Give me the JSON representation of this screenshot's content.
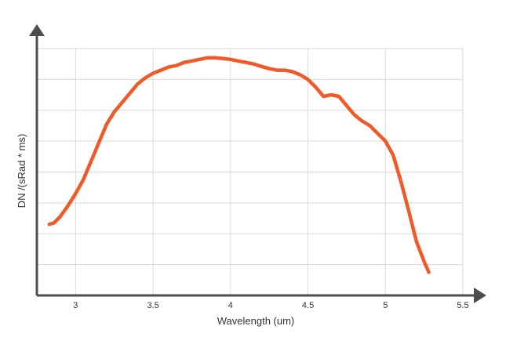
{
  "chart_data": {
    "type": "line",
    "title": "",
    "xlabel": "Wavelength (um)",
    "ylabel": "DN /(sRad * ms)",
    "xlim": [
      2.75,
      5.5
    ],
    "ylim": [
      0,
      8
    ],
    "x_ticks": [
      3,
      3.5,
      4,
      4.5,
      5,
      5.5
    ],
    "x_tick_labels": [
      "3",
      "3.5",
      "4",
      "4.5",
      "5",
      "5.5"
    ],
    "y_ticks": [
      1,
      2,
      3,
      4,
      5,
      6,
      7,
      8
    ],
    "y_tick_labels": [],
    "grid": true,
    "legend": "none",
    "series": [
      {
        "color": "#f05a28",
        "x": [
          2.83,
          2.86,
          2.9,
          2.95,
          3.0,
          3.05,
          3.1,
          3.15,
          3.2,
          3.25,
          3.3,
          3.35,
          3.4,
          3.45,
          3.5,
          3.55,
          3.6,
          3.65,
          3.7,
          3.75,
          3.8,
          3.85,
          3.9,
          3.95,
          4.0,
          4.05,
          4.1,
          4.15,
          4.2,
          4.25,
          4.3,
          4.35,
          4.4,
          4.45,
          4.5,
          4.55,
          4.6,
          4.65,
          4.7,
          4.75,
          4.8,
          4.85,
          4.9,
          4.95,
          5.0,
          5.05,
          5.1,
          5.15,
          5.2,
          5.25,
          5.28
        ],
        "y": [
          2.3,
          2.35,
          2.55,
          2.9,
          3.3,
          3.75,
          4.35,
          4.95,
          5.55,
          5.95,
          6.25,
          6.55,
          6.85,
          7.05,
          7.2,
          7.3,
          7.4,
          7.45,
          7.55,
          7.6,
          7.65,
          7.7,
          7.7,
          7.68,
          7.65,
          7.6,
          7.55,
          7.5,
          7.42,
          7.35,
          7.3,
          7.3,
          7.25,
          7.15,
          7.0,
          6.75,
          6.45,
          6.5,
          6.45,
          6.15,
          5.85,
          5.65,
          5.5,
          5.25,
          5.0,
          4.55,
          3.7,
          2.75,
          1.75,
          1.1,
          0.75
        ]
      }
    ]
  }
}
